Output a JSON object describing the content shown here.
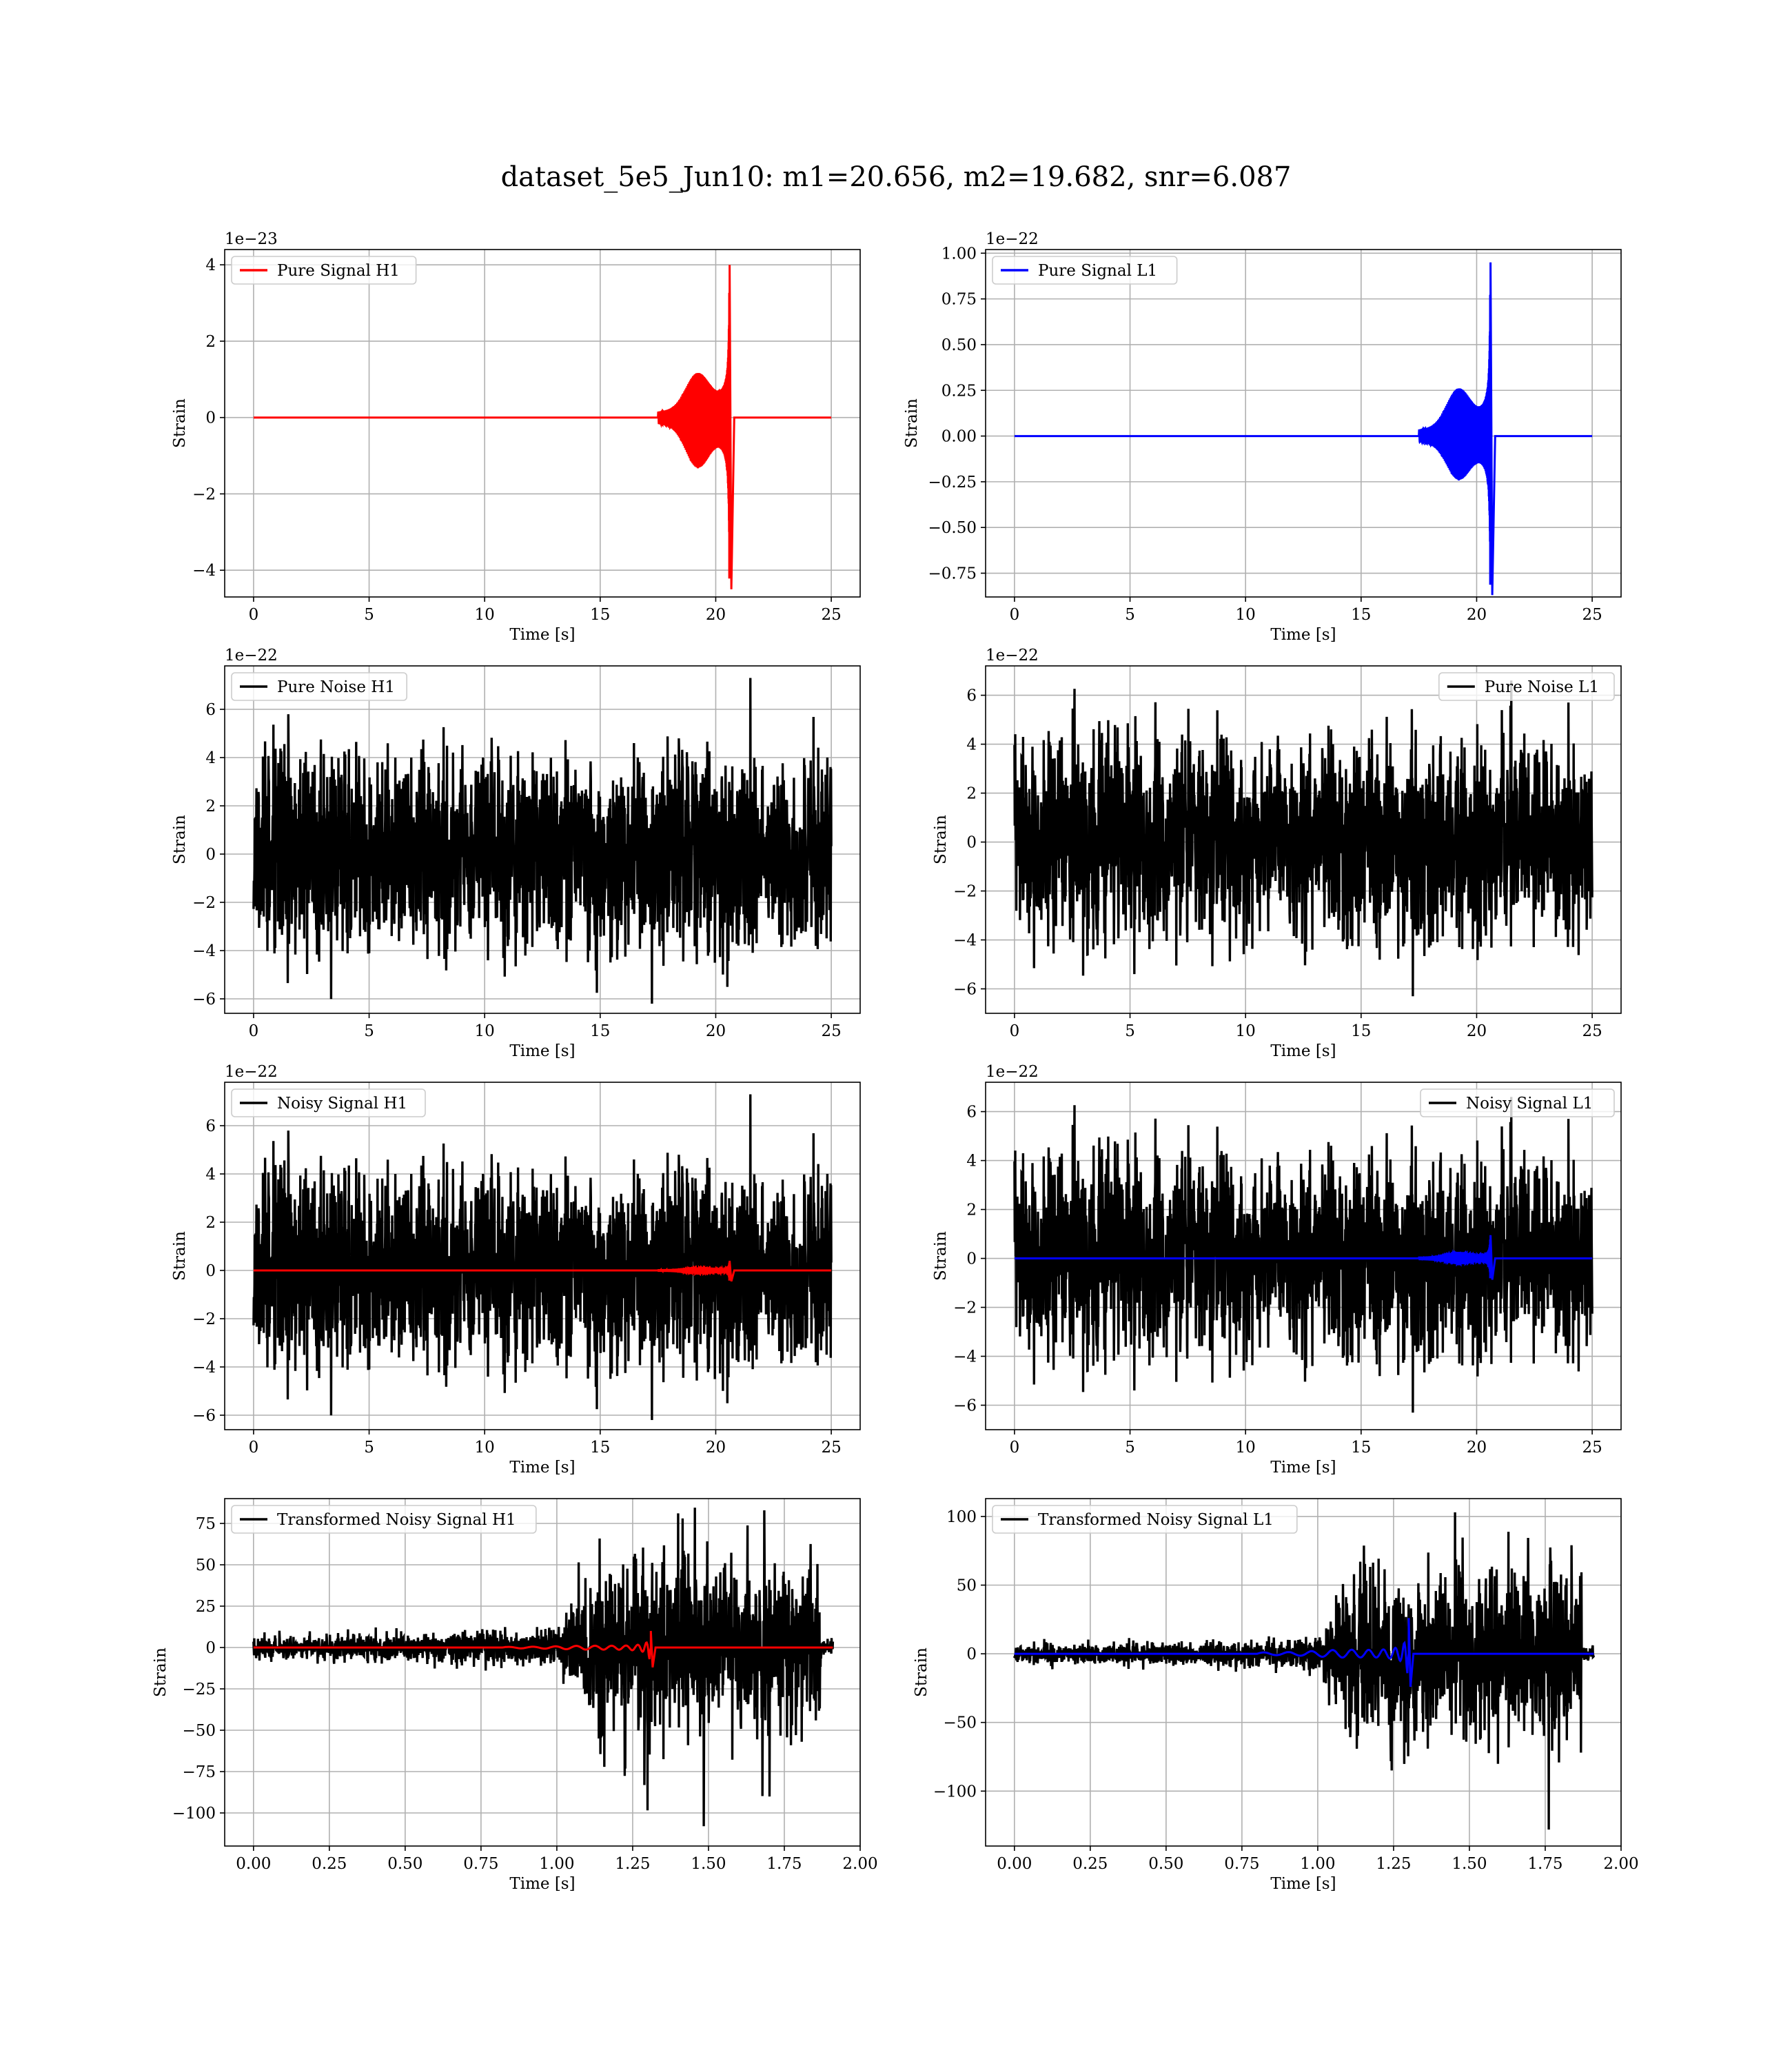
{
  "figure": {
    "suptitle": "dataset_5e5_Jun10: m1=20.656, m2=19.682, snr=6.087"
  },
  "colors": {
    "h1_signal": "#ff0000",
    "l1_signal": "#0000ff",
    "noise": "#000000",
    "grid": "#b0b0b0"
  },
  "chart_data": [
    {
      "type": "line",
      "id": "pure-signal-h1",
      "xlabel": "Time [s]",
      "ylabel": "Strain",
      "offset_text": "1e−23",
      "xlim": [
        -1.25,
        26.25
      ],
      "ylim": [
        -4.7,
        4.4
      ],
      "xticks": [
        0,
        5,
        10,
        15,
        20,
        25
      ],
      "xtick_labels": [
        "0",
        "5",
        "10",
        "15",
        "20",
        "25"
      ],
      "yticks": [
        -4,
        -2,
        0,
        2,
        4
      ],
      "ytick_labels": [
        "−4",
        "−2",
        "0",
        "2",
        "4"
      ],
      "grid": true,
      "legend_loc": "upper left",
      "series": [
        {
          "name": "Pure Signal H1",
          "color": "#ff0000",
          "kind": "chirp",
          "x_range": [
            0,
            25
          ],
          "t_merge": 20.6,
          "t_start": 17.5,
          "amp_hump": 1.0,
          "amp_peak_pos": 4.0,
          "amp_peak_neg": 4.5
        }
      ]
    },
    {
      "type": "line",
      "id": "pure-signal-l1",
      "xlabel": "Time [s]",
      "ylabel": "Strain",
      "offset_text": "1e−22",
      "xlim": [
        -1.25,
        26.25
      ],
      "ylim": [
        -0.88,
        1.02
      ],
      "xticks": [
        0,
        5,
        10,
        15,
        20,
        25
      ],
      "xtick_labels": [
        "0",
        "5",
        "10",
        "15",
        "20",
        "25"
      ],
      "yticks": [
        -0.75,
        -0.5,
        -0.25,
        0.0,
        0.25,
        0.5,
        0.75,
        1.0
      ],
      "ytick_labels": [
        "−0.75",
        "−0.50",
        "−0.25",
        "0.00",
        "0.25",
        "0.50",
        "0.75",
        "1.00"
      ],
      "grid": true,
      "legend_loc": "upper left",
      "series": [
        {
          "name": "Pure Signal L1",
          "color": "#0000ff",
          "kind": "chirp",
          "x_range": [
            0,
            25
          ],
          "t_merge": 20.6,
          "t_start": 17.5,
          "amp_hump": 0.22,
          "amp_peak_pos": 0.95,
          "amp_peak_neg": 0.87
        }
      ]
    },
    {
      "type": "line",
      "id": "pure-noise-h1",
      "xlabel": "Time [s]",
      "ylabel": "Strain",
      "offset_text": "1e−22",
      "xlim": [
        -1.25,
        26.25
      ],
      "ylim": [
        -6.6,
        7.8
      ],
      "xticks": [
        0,
        5,
        10,
        15,
        20,
        25
      ],
      "xtick_labels": [
        "0",
        "5",
        "10",
        "15",
        "20",
        "25"
      ],
      "yticks": [
        -6,
        -4,
        -2,
        0,
        2,
        4,
        6
      ],
      "ytick_labels": [
        "−6",
        "−4",
        "−2",
        "0",
        "2",
        "4",
        "6"
      ],
      "grid": true,
      "legend_loc": "upper left",
      "series": [
        {
          "name": "Pure Noise H1",
          "color": "#000000",
          "kind": "noise",
          "x_range": [
            0,
            25
          ],
          "band": 4.0,
          "peak_pos": 7.3,
          "peak_neg": -6.2,
          "seed": 11
        }
      ]
    },
    {
      "type": "line",
      "id": "pure-noise-l1",
      "xlabel": "Time [s]",
      "ylabel": "Strain",
      "offset_text": "1e−22",
      "xlim": [
        -1.25,
        26.25
      ],
      "ylim": [
        -7.0,
        7.2
      ],
      "xticks": [
        0,
        5,
        10,
        15,
        20,
        25
      ],
      "xtick_labels": [
        "0",
        "5",
        "10",
        "15",
        "20",
        "25"
      ],
      "yticks": [
        -6,
        -4,
        -2,
        0,
        2,
        4,
        6
      ],
      "ytick_labels": [
        "−6",
        "−4",
        "−2",
        "0",
        "2",
        "4",
        "6"
      ],
      "grid": true,
      "legend_loc": "upper right",
      "series": [
        {
          "name": "Pure Noise L1",
          "color": "#000000",
          "kind": "noise",
          "x_range": [
            0,
            25
          ],
          "band": 4.0,
          "peak_pos": 6.6,
          "peak_neg": -6.3,
          "seed": 23
        }
      ]
    },
    {
      "type": "line",
      "id": "noisy-signal-h1",
      "xlabel": "Time [s]",
      "ylabel": "Strain",
      "offset_text": "1e−22",
      "xlim": [
        -1.25,
        26.25
      ],
      "ylim": [
        -6.6,
        7.8
      ],
      "xticks": [
        0,
        5,
        10,
        15,
        20,
        25
      ],
      "xtick_labels": [
        "0",
        "5",
        "10",
        "15",
        "20",
        "25"
      ],
      "yticks": [
        -6,
        -4,
        -2,
        0,
        2,
        4,
        6
      ],
      "ytick_labels": [
        "−6",
        "−4",
        "−2",
        "0",
        "2",
        "4",
        "6"
      ],
      "grid": true,
      "legend_loc": "upper left",
      "series": [
        {
          "name": "Noisy Signal H1",
          "color": "#000000",
          "kind": "noise",
          "x_range": [
            0,
            25
          ],
          "band": 4.0,
          "peak_pos": 7.3,
          "peak_neg": -6.2,
          "seed": 11
        },
        {
          "color": "#ff0000",
          "kind": "chirp",
          "x_range": [
            0,
            25
          ],
          "t_merge": 20.6,
          "t_start": 17.5,
          "amp_hump": 0.1,
          "amp_peak_pos": 0.4,
          "amp_peak_neg": 0.45
        }
      ]
    },
    {
      "type": "line",
      "id": "noisy-signal-l1",
      "xlabel": "Time [s]",
      "ylabel": "Strain",
      "offset_text": "1e−22",
      "xlim": [
        -1.25,
        26.25
      ],
      "ylim": [
        -7.0,
        7.2
      ],
      "xticks": [
        0,
        5,
        10,
        15,
        20,
        25
      ],
      "xtick_labels": [
        "0",
        "5",
        "10",
        "15",
        "20",
        "25"
      ],
      "yticks": [
        -6,
        -4,
        -2,
        0,
        2,
        4,
        6
      ],
      "ytick_labels": [
        "−6",
        "−4",
        "−2",
        "0",
        "2",
        "4",
        "6"
      ],
      "grid": true,
      "legend_loc": "upper right",
      "series": [
        {
          "name": "Noisy Signal L1",
          "color": "#000000",
          "kind": "noise",
          "x_range": [
            0,
            25
          ],
          "band": 4.0,
          "peak_pos": 6.6,
          "peak_neg": -6.3,
          "seed": 23
        },
        {
          "color": "#0000ff",
          "kind": "chirp",
          "x_range": [
            0,
            25
          ],
          "t_merge": 20.6,
          "t_start": 17.5,
          "amp_hump": 0.22,
          "amp_peak_pos": 0.95,
          "amp_peak_neg": 0.87
        }
      ]
    },
    {
      "type": "line",
      "id": "transformed-noisy-signal-h1",
      "xlabel": "Time [s]",
      "ylabel": "Strain",
      "offset_text": "",
      "xlim": [
        -0.095,
        2.0
      ],
      "ylim": [
        -120,
        90
      ],
      "xticks": [
        0.0,
        0.25,
        0.5,
        0.75,
        1.0,
        1.25,
        1.5,
        1.75,
        2.0
      ],
      "xtick_labels": [
        "0.00",
        "0.25",
        "0.50",
        "0.75",
        "1.00",
        "1.25",
        "1.50",
        "1.75",
        "2.00"
      ],
      "yticks": [
        -100,
        -75,
        -50,
        -25,
        0,
        25,
        50,
        75
      ],
      "ytick_labels": [
        "−100",
        "−75",
        "−50",
        "−25",
        "0",
        "25",
        "50",
        "75"
      ],
      "grid": true,
      "legend_loc": "upper left",
      "series": [
        {
          "name": "Transformed Noisy Signal H1",
          "color": "#000000",
          "kind": "whitened",
          "x_range": [
            0,
            1.91
          ],
          "quiet_end": 1.0,
          "quiet_amp": 8,
          "loud_start": 1.09,
          "loud_end": 1.87,
          "loud_amp": 45,
          "peak_pos": 78,
          "peak_neg": -108,
          "seed": 37
        },
        {
          "color": "#ff0000",
          "kind": "chirp",
          "x_range": [
            0,
            1.91
          ],
          "t_merge": 1.31,
          "t_start": 0.82,
          "amp_hump": 0.5,
          "amp_peak_pos": 10,
          "amp_peak_neg": 12,
          "cycles": 9
        }
      ]
    },
    {
      "type": "line",
      "id": "transformed-noisy-signal-l1",
      "xlabel": "Time [s]",
      "ylabel": "Strain",
      "offset_text": "",
      "xlim": [
        -0.095,
        2.0
      ],
      "ylim": [
        -140,
        113
      ],
      "xticks": [
        0.0,
        0.25,
        0.5,
        0.75,
        1.0,
        1.25,
        1.5,
        1.75,
        2.0
      ],
      "xtick_labels": [
        "0.00",
        "0.25",
        "0.50",
        "0.75",
        "1.00",
        "1.25",
        "1.50",
        "1.75",
        "2.00"
      ],
      "yticks": [
        -100,
        -50,
        0,
        50,
        100
      ],
      "ytick_labels": [
        "−100",
        "−50",
        "0",
        "50",
        "100"
      ],
      "grid": true,
      "legend_loc": "upper left",
      "series": [
        {
          "name": "Transformed Noisy Signal L1",
          "color": "#000000",
          "kind": "whitened",
          "x_range": [
            0,
            1.91
          ],
          "quiet_end": 1.0,
          "quiet_amp": 8,
          "loud_start": 1.09,
          "loud_end": 1.87,
          "loud_amp": 50,
          "peak_pos": 103,
          "peak_neg": -128,
          "seed": 41
        },
        {
          "color": "#0000ff",
          "kind": "chirp",
          "x_range": [
            0,
            1.91
          ],
          "t_merge": 1.3,
          "t_start": 0.8,
          "amp_hump": 1.5,
          "amp_peak_pos": 26,
          "amp_peak_neg": 24,
          "cycles": 9
        }
      ]
    }
  ]
}
